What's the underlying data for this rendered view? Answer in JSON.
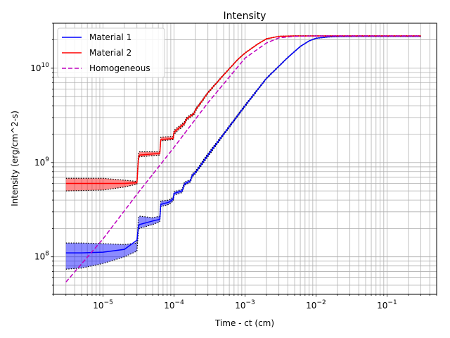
{
  "chart_data": {
    "type": "line",
    "title": "Intensity",
    "xlabel": "Time - ct (cm)",
    "ylabel": "Intensity (erg/cm^2-s)",
    "xscale": "log",
    "yscale": "log",
    "xlim": [
      2e-06,
      0.5
    ],
    "ylim": [
      40000000.0,
      30000000000.0
    ],
    "x_ticks": [
      {
        "value": 1e-05,
        "base": "10",
        "exp": "−5"
      },
      {
        "value": 0.0001,
        "base": "10",
        "exp": "−4"
      },
      {
        "value": 0.001,
        "base": "10",
        "exp": "−3"
      },
      {
        "value": 0.01,
        "base": "10",
        "exp": "−2"
      },
      {
        "value": 0.1,
        "base": "10",
        "exp": "−1"
      }
    ],
    "y_ticks": [
      {
        "value": 100000000.0,
        "base": "10",
        "exp": "8"
      },
      {
        "value": 1000000000.0,
        "base": "10",
        "exp": "9"
      },
      {
        "value": 10000000000.0,
        "base": "10",
        "exp": "10"
      }
    ],
    "grid": true,
    "legend_position": "top-left",
    "series": [
      {
        "name": "Material 1",
        "color": "#0000ff",
        "style": "solid",
        "x": [
          3e-06,
          5e-06,
          1e-05,
          2e-05,
          3e-05,
          3.15e-05,
          3.25e-05,
          5e-05,
          6.3e-05,
          6.5e-05,
          8.5e-05,
          9.7e-05,
          0.0001,
          0.00013,
          0.00014,
          0.00017,
          0.00018,
          0.0002,
          0.0003,
          0.0005,
          0.001,
          0.002,
          0.004,
          0.006,
          0.008,
          0.01,
          0.015,
          0.02,
          0.05,
          0.1,
          0.3
        ],
        "y": [
          110000000.0,
          110000000.0,
          112000000.0,
          120000000.0,
          150000000.0,
          210000000.0,
          220000000.0,
          240000000.0,
          250000000.0,
          360000000.0,
          380000000.0,
          410000000.0,
          470000000.0,
          500000000.0,
          590000000.0,
          640000000.0,
          730000000.0,
          780000000.0,
          1200000000.0,
          2000000000.0,
          4000000000.0,
          7800000000.0,
          13000000000.0,
          17000000000.0,
          19500000000.0,
          20800000000.0,
          21500000000.0,
          21700000000.0,
          21800000000.0,
          21800000000.0,
          21800000000.0
        ],
        "band_upper": [
          140000000.0,
          140000000.0,
          138000000.0,
          135000000.0,
          140000000.0,
          260000000.0,
          270000000.0,
          260000000.0,
          270000000.0,
          390000000.0,
          400000000.0,
          430000000.0,
          490000000.0,
          520000000.0,
          620000000.0,
          660000000.0,
          760000000.0,
          810000000.0,
          1250000000.0,
          2050000000.0,
          4100000000.0,
          7900000000.0,
          13100000000.0,
          17100000000.0,
          19600000000.0,
          20900000000.0,
          21600000000.0,
          21800000000.0,
          21900000000.0,
          21900000000.0,
          21900000000.0
        ],
        "band_lower": [
          74000000.0,
          76000000.0,
          85000000.0,
          100000000.0,
          115000000.0,
          190000000.0,
          200000000.0,
          220000000.0,
          235000000.0,
          340000000.0,
          360000000.0,
          390000000.0,
          450000000.0,
          480000000.0,
          570000000.0,
          620000000.0,
          700000000.0,
          760000000.0,
          1150000000.0,
          1950000000.0,
          3900000000.0,
          7700000000.0,
          12900000000.0,
          16900000000.0,
          19400000000.0,
          20700000000.0,
          21400000000.0,
          21600000000.0,
          21700000000.0,
          21700000000.0,
          21700000000.0
        ]
      },
      {
        "name": "Material 2",
        "color": "#ff0000",
        "style": "solid",
        "x": [
          3e-06,
          1e-05,
          2e-05,
          3e-05,
          3.15e-05,
          3.25e-05,
          6.3e-05,
          6.5e-05,
          9.7e-05,
          0.0001,
          0.00014,
          0.00015,
          0.00019,
          0.0002,
          0.0003,
          0.0005,
          0.0008,
          0.001,
          0.0015,
          0.002,
          0.003,
          0.005,
          0.01,
          0.1,
          0.3
        ],
        "y": [
          600000000.0,
          600000000.0,
          600000000.0,
          610000000.0,
          1100000000.0,
          1200000000.0,
          1250000000.0,
          1750000000.0,
          1800000000.0,
          2100000000.0,
          2600000000.0,
          2900000000.0,
          3300000000.0,
          3600000000.0,
          5500000000.0,
          8500000000.0,
          12500000000.0,
          14500000000.0,
          18000000000.0,
          20500000000.0,
          21800000000.0,
          22000000000.0,
          22000000000.0,
          22000000000.0,
          22000000000.0
        ],
        "band_upper": [
          680000000.0,
          680000000.0,
          650000000.0,
          630000000.0,
          1250000000.0,
          1300000000.0,
          1300000000.0,
          1850000000.0,
          1900000000.0,
          2200000000.0,
          2700000000.0,
          3000000000.0,
          3400000000.0,
          3700000000.0,
          5600000000.0,
          8600000000.0,
          12600000000.0,
          14600000000.0,
          18100000000.0,
          20600000000.0,
          21900000000.0,
          22100000000.0,
          22100000000.0,
          22100000000.0,
          22100000000.0
        ],
        "band_lower": [
          500000000.0,
          510000000.0,
          550000000.0,
          590000000.0,
          1050000000.0,
          1150000000.0,
          1200000000.0,
          1700000000.0,
          1750000000.0,
          2000000000.0,
          2500000000.0,
          2800000000.0,
          3200000000.0,
          3500000000.0,
          5400000000.0,
          8400000000.0,
          12400000000.0,
          14400000000.0,
          17900000000.0,
          20400000000.0,
          21700000000.0,
          21900000000.0,
          21900000000.0,
          21900000000.0,
          21900000000.0
        ]
      },
      {
        "name": "Homogeneous",
        "color": "#bf00bf",
        "style": "dashed",
        "x": [
          3e-06,
          1e-05,
          3e-05,
          0.0001,
          0.0003,
          0.001,
          0.002,
          0.003,
          0.005,
          0.01,
          0.1,
          0.3
        ],
        "y": [
          54000000.0,
          155000000.0,
          460000000.0,
          1450000000.0,
          4300000000.0,
          12800000000.0,
          18500000000.0,
          21000000000.0,
          21800000000.0,
          22000000000.0,
          22000000000.0,
          22000000000.0
        ]
      }
    ]
  }
}
